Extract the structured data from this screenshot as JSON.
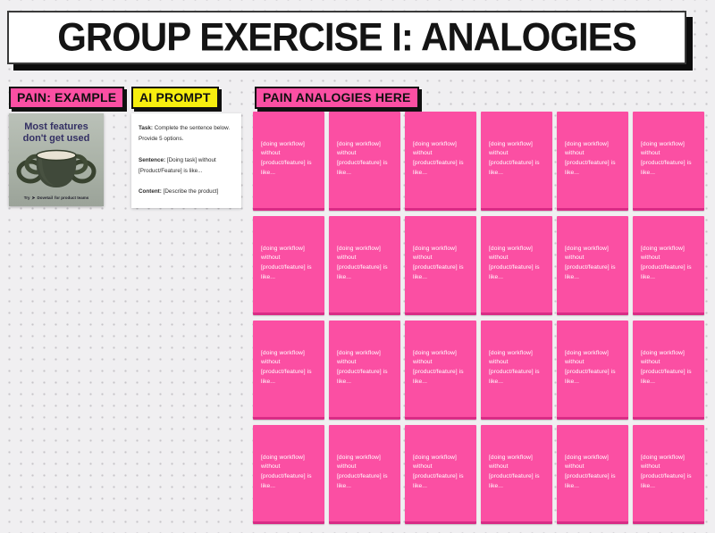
{
  "title": "GROUP EXERCISE I: ANALOGIES",
  "labels": {
    "pain_example": "PAIN: EXAMPLE",
    "ai_prompt": "AI PROMPT",
    "pain_analogies": "PAIN ANALOGIES HERE"
  },
  "example_card": {
    "headline": "Most features don't get used",
    "footer_try": "Try",
    "footer_brand": "Dovetail",
    "footer_suffix": "for product teams",
    "icon": "multi-handle-mug"
  },
  "prompt_card": {
    "sections": [
      {
        "label": "Task:",
        "lines": [
          "Complete the sentence below.",
          "Provide 5 options."
        ]
      },
      {
        "label": "Sentence:",
        "lines": [
          "[Doing task] without",
          "[Product/Feature] is like..."
        ]
      },
      {
        "label": "Content:",
        "lines": [
          "[Describe the product]"
        ]
      }
    ]
  },
  "sticky_notes": {
    "rows": 4,
    "cols": 6,
    "line1": "[doing workflow] without",
    "line2": "[product/feature] is like..."
  },
  "colors": {
    "pink": "#fb4fa3",
    "yellow": "#f7ee0f",
    "note_edge": "#d92c86",
    "shadow_black": "#101010",
    "board_bg": "#f0eff1"
  }
}
